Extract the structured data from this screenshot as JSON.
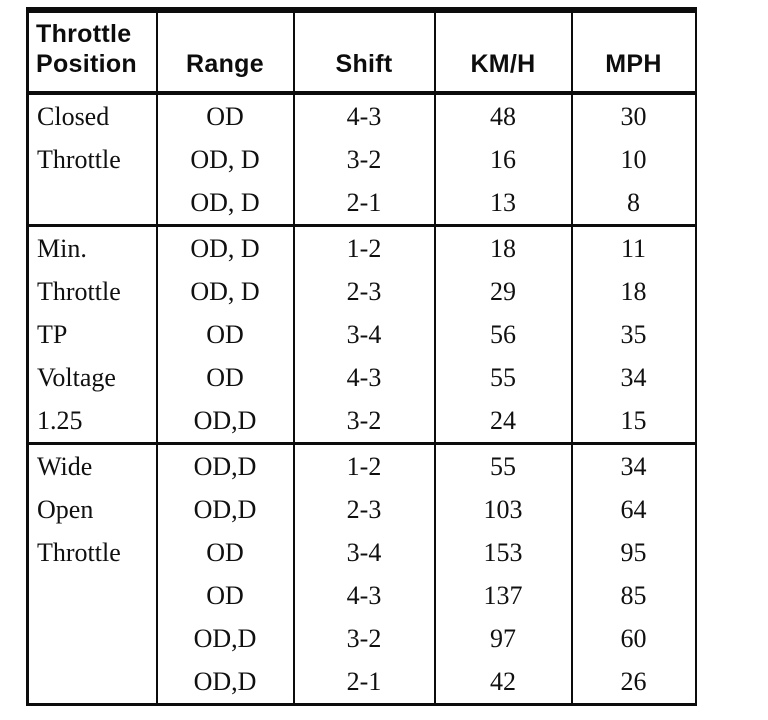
{
  "table": {
    "headers": [
      "Throttle\nPosition",
      "Range",
      "Shift",
      "KM/H",
      "MPH"
    ],
    "sections": [
      {
        "rows": [
          {
            "position": "Closed",
            "range": "OD",
            "shift": "4-3",
            "kmh": "48",
            "mph": "30"
          },
          {
            "position": "Throttle",
            "range": "OD, D",
            "shift": "3-2",
            "kmh": "16",
            "mph": "10"
          },
          {
            "position": "",
            "range": "OD, D",
            "shift": "2-1",
            "kmh": "13",
            "mph": "8"
          }
        ]
      },
      {
        "rows": [
          {
            "position": "Min.",
            "range": "OD, D",
            "shift": "1-2",
            "kmh": "18",
            "mph": "11"
          },
          {
            "position": "Throttle",
            "range": "OD, D",
            "shift": "2-3",
            "kmh": "29",
            "mph": "18"
          },
          {
            "position": "TP",
            "range": "OD",
            "shift": "3-4",
            "kmh": "56",
            "mph": "35"
          },
          {
            "position": "Voltage",
            "range": "OD",
            "shift": "4-3",
            "kmh": "55",
            "mph": "34"
          },
          {
            "position": "1.25",
            "range": "OD,D",
            "shift": "3-2",
            "kmh": "24",
            "mph": "15"
          }
        ]
      },
      {
        "rows": [
          {
            "position": "Wide",
            "range": "OD,D",
            "shift": "1-2",
            "kmh": "55",
            "mph": "34"
          },
          {
            "position": "Open",
            "range": "OD,D",
            "shift": "2-3",
            "kmh": "103",
            "mph": "64"
          },
          {
            "position": "Throttle",
            "range": "OD",
            "shift": "3-4",
            "kmh": "153",
            "mph": "95"
          },
          {
            "position": "",
            "range": "OD",
            "shift": "4-3",
            "kmh": "137",
            "mph": "85"
          },
          {
            "position": "",
            "range": "OD,D",
            "shift": "3-2",
            "kmh": "97",
            "mph": "60"
          },
          {
            "position": "",
            "range": "OD,D",
            "shift": "2-1",
            "kmh": "42",
            "mph": "26"
          }
        ]
      }
    ]
  }
}
